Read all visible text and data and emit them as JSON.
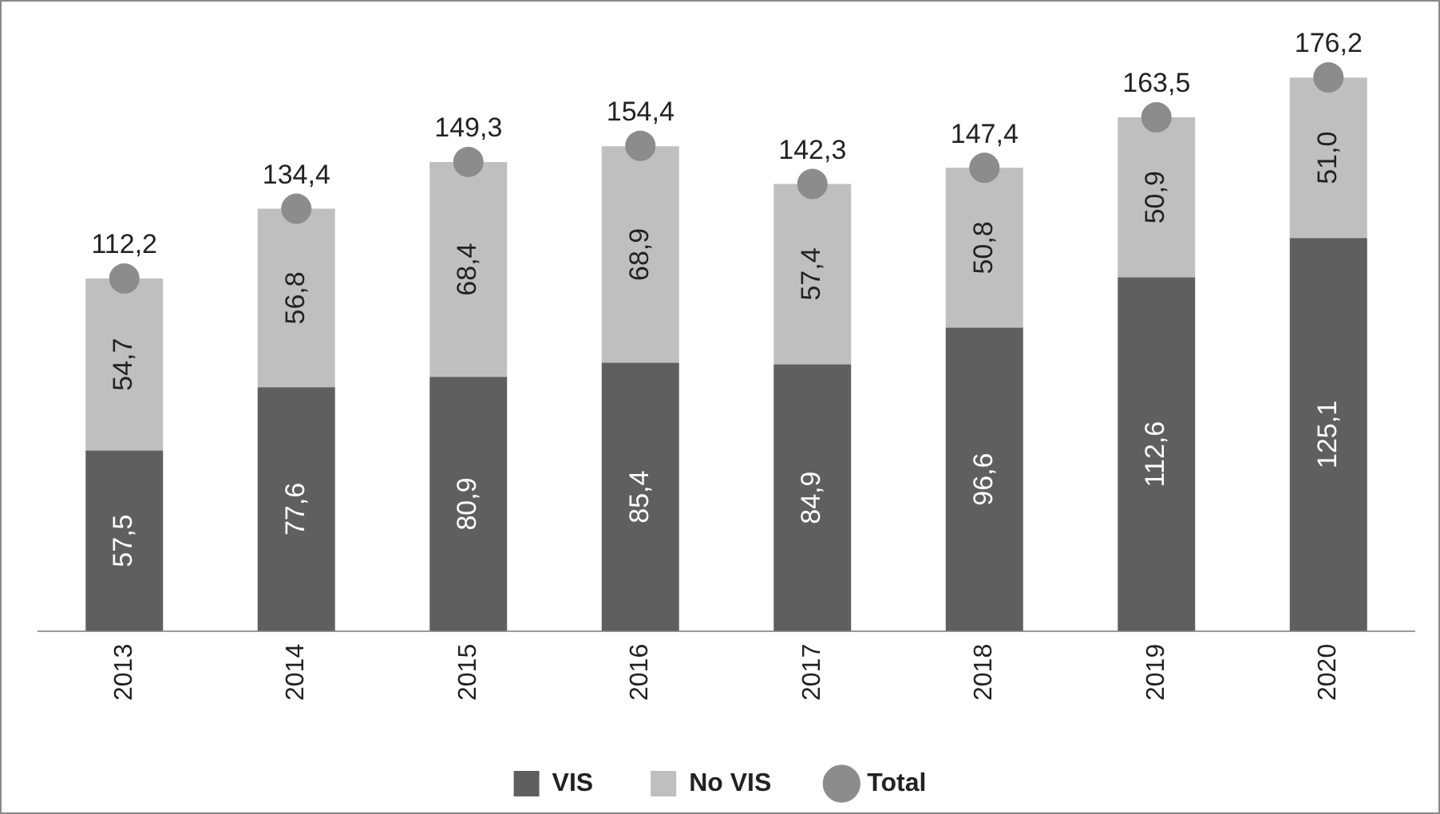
{
  "chart_data": {
    "type": "bar",
    "stacked": true,
    "legend": "bottom",
    "grid": false,
    "categories": [
      "2013",
      "2014",
      "2015",
      "2016",
      "2017",
      "2018",
      "2019",
      "2020"
    ],
    "series": [
      {
        "name": "VIS",
        "color": "#5f5f5f",
        "values": [
          57.5,
          77.6,
          80.9,
          85.4,
          84.9,
          96.6,
          112.6,
          125.1
        ],
        "value_labels": [
          "57,5",
          "77,6",
          "80,9",
          "85,4",
          "84,9",
          "96,6",
          "112,6",
          "125,1"
        ]
      },
      {
        "name": "No VIS",
        "color": "#bfbfbf",
        "values": [
          54.7,
          56.8,
          68.4,
          68.9,
          57.4,
          50.8,
          50.9,
          51.0
        ],
        "value_labels": [
          "54,7",
          "56,8",
          "68,4",
          "68,9",
          "57,4",
          "50,8",
          "50,9",
          "51,0"
        ]
      },
      {
        "name": "Total",
        "type": "scatter",
        "marker": "circle",
        "color": "#8c8c8c",
        "values": [
          112.2,
          134.4,
          149.3,
          154.4,
          142.3,
          147.4,
          163.5,
          176.2
        ],
        "value_labels": [
          "112,2",
          "134,4",
          "149,3",
          "154,4",
          "142,3",
          "147,4",
          "163,5",
          "176,2"
        ]
      }
    ]
  }
}
